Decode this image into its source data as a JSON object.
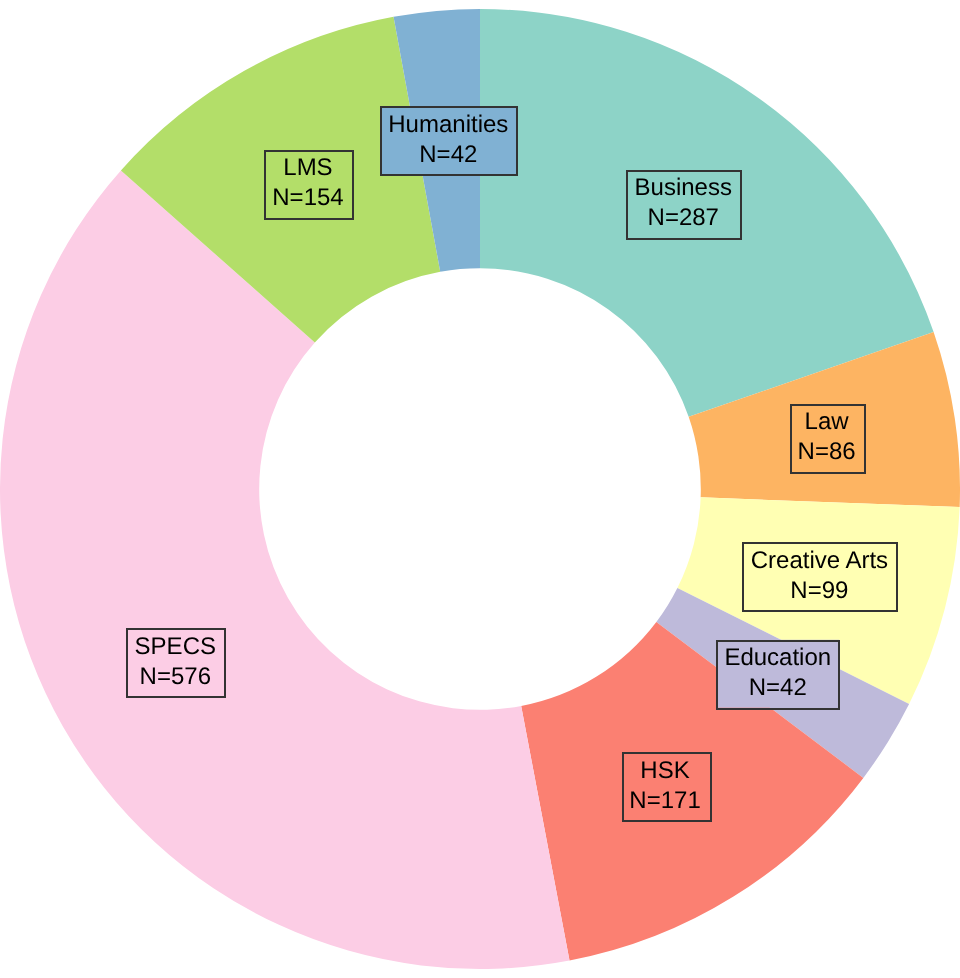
{
  "chart_data": {
    "type": "donut",
    "categories": [
      "Business",
      "Law",
      "Creative Arts",
      "Education",
      "HSK",
      "SPECS",
      "LMS",
      "Humanities"
    ],
    "values": [
      287,
      86,
      99,
      42,
      171,
      576,
      154,
      42
    ],
    "value_labels": [
      "N=287",
      "N=86",
      "N=99",
      "N=42",
      "N=171",
      "N=576",
      "N=154",
      "N=42"
    ],
    "colors": [
      "#8dd3c7",
      "#fdb462",
      "#ffffb3",
      "#bebada",
      "#fb8072",
      "#fccde5",
      "#b3de69",
      "#80b1d3"
    ],
    "legend": false
  }
}
